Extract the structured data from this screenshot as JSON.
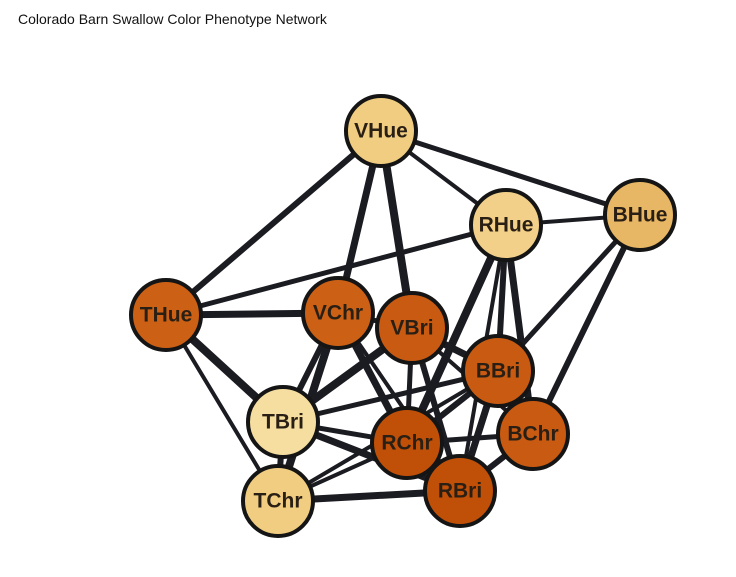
{
  "title": "Colorado Barn Swallow Color Phenotype Network",
  "colors": {
    "edge": "#1b1b22",
    "node_outline": "#151515",
    "label": "#2a1f14"
  },
  "nodes": [
    {
      "id": "VHue",
      "color": "#f0cd80"
    },
    {
      "id": "RHue",
      "color": "#f2d08a"
    },
    {
      "id": "BHue",
      "color": "#e8b765"
    },
    {
      "id": "THue",
      "color": "#cc6015"
    },
    {
      "id": "VChr",
      "color": "#cc6015"
    },
    {
      "id": "VBri",
      "color": "#c85a12"
    },
    {
      "id": "BBri",
      "color": "#c85a12"
    },
    {
      "id": "TBri",
      "color": "#f5dea0"
    },
    {
      "id": "BChr",
      "color": "#c85a12"
    },
    {
      "id": "RChr",
      "color": "#c05008"
    },
    {
      "id": "RBri",
      "color": "#c05008"
    },
    {
      "id": "TChr",
      "color": "#f0cd80"
    }
  ],
  "edges": [
    [
      "VHue",
      "RHue"
    ],
    [
      "VHue",
      "BHue"
    ],
    [
      "VHue",
      "THue"
    ],
    [
      "VHue",
      "VChr"
    ],
    [
      "VHue",
      "VBri"
    ],
    [
      "RHue",
      "BHue"
    ],
    [
      "RHue",
      "THue"
    ],
    [
      "RHue",
      "BBri"
    ],
    [
      "RHue",
      "BChr"
    ],
    [
      "RHue",
      "RChr"
    ],
    [
      "RHue",
      "RBri"
    ],
    [
      "BHue",
      "BBri"
    ],
    [
      "BHue",
      "BChr"
    ],
    [
      "THue",
      "VChr"
    ],
    [
      "THue",
      "TBri"
    ],
    [
      "THue",
      "TChr"
    ],
    [
      "VChr",
      "VBri"
    ],
    [
      "VChr",
      "TBri"
    ],
    [
      "VChr",
      "RChr"
    ],
    [
      "VChr",
      "TChr"
    ],
    [
      "VChr",
      "RBri"
    ],
    [
      "VBri",
      "RChr"
    ],
    [
      "VBri",
      "RBri"
    ],
    [
      "VBri",
      "BBri"
    ],
    [
      "VBri",
      "TBri"
    ],
    [
      "VBri",
      "BChr"
    ],
    [
      "BBri",
      "TBri"
    ],
    [
      "BBri",
      "RChr"
    ],
    [
      "BBri",
      "RBri"
    ],
    [
      "BBri",
      "BChr"
    ],
    [
      "BBri",
      "TChr"
    ],
    [
      "TBri",
      "RChr"
    ],
    [
      "TBri",
      "TChr"
    ],
    [
      "TBri",
      "RBri"
    ],
    [
      "RChr",
      "RBri"
    ],
    [
      "RChr",
      "TChr"
    ],
    [
      "RChr",
      "BChr"
    ],
    [
      "BChr",
      "RBri"
    ],
    [
      "TChr",
      "RBri"
    ]
  ]
}
